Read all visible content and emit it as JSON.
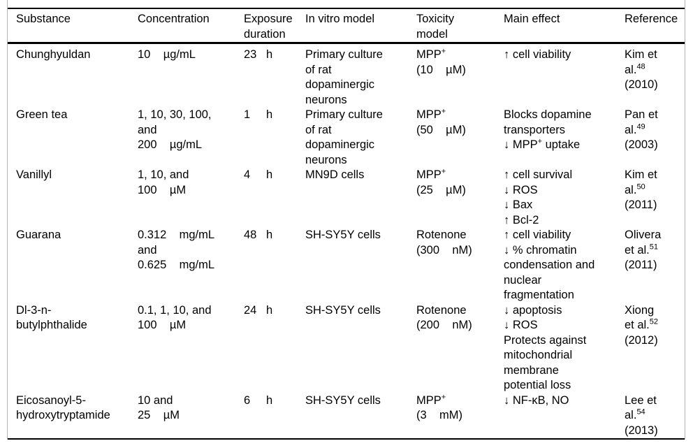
{
  "colors": {
    "text": "#000000",
    "rule": "#000000",
    "frame_border": "#b3b3b3",
    "background": "#ffffff"
  },
  "table": {
    "columns": [
      "Substance",
      "Concentration",
      "Exposure\nduration",
      "In vitro model",
      "Toxicity\nmodel",
      "Main effect",
      "Reference"
    ],
    "rows": [
      {
        "substance": "Chunghyuldan",
        "concentration": "10    µg/mL",
        "duration_value": "23",
        "duration_unit": "h",
        "in_vitro_model": "Primary culture\nof rat\ndopaminergic\nneurons",
        "toxicity_model": "MPP^{+}\n(10    µM)",
        "main_effect": "↑ cell viability",
        "reference": "Kim et\nal.^{48}\n(2010)"
      },
      {
        "substance": "Green tea",
        "concentration": "1, 10, 30, 100,\nand\n200    µg/mL",
        "duration_value": "1",
        "duration_unit": "h",
        "in_vitro_model": "Primary culture\nof rat\ndopaminergic\nneurons",
        "toxicity_model": "MPP^{+}\n(50    µM)",
        "main_effect": "Blocks dopamine\ntransporters\n↓ MPP^{+} uptake",
        "reference": "Pan et\nal.^{49}\n(2003)"
      },
      {
        "substance": "Vanillyl",
        "concentration": "1, 10, and\n100    µM",
        "duration_value": "4",
        "duration_unit": "h",
        "in_vitro_model": "MN9D cells",
        "toxicity_model": "MPP^{+}\n(25    µM)",
        "main_effect": "↑ cell survival\n↓ ROS\n↓ Bax\n↑ Bcl-2",
        "reference": "Kim et\nal.^{50}\n(2011)"
      },
      {
        "substance": "Guarana",
        "concentration": "0.312    mg/mL\nand\n0.625    mg/mL",
        "duration_value": "48",
        "duration_unit": "h",
        "in_vitro_model": "SH-SY5Y cells",
        "toxicity_model": "Rotenone\n(300    nM)",
        "main_effect": "↑ cell viability\n↓ % chromatin\ncondensation and\nnuclear\nfragmentation",
        "reference": "Olivera\net al.^{51}\n(2011)"
      },
      {
        "substance": "Dl-3-n-\nbutylphthalide",
        "concentration": "0.1, 1, 10, and\n100    µM",
        "duration_value": "24",
        "duration_unit": "h",
        "in_vitro_model": "SH-SY5Y cells",
        "toxicity_model": "Rotenone\n(200    nM)",
        "main_effect": "↓ apoptosis\n↓ ROS\nProtects against\nmitochondrial\nmembrane\npotential loss",
        "reference": "Xiong\net al.^{52}\n(2012)"
      },
      {
        "substance": "Eicosanoyl-5-\nhydroxytryptamide",
        "concentration": "10 and\n25    µM",
        "duration_value": "6",
        "duration_unit": "h",
        "in_vitro_model": "SH-SY5Y cells",
        "toxicity_model": "MPP^{+}\n(3    mM)",
        "main_effect": "↓ NF-κB, NO",
        "reference": "Lee et\nal.^{54}\n(2013)"
      }
    ]
  }
}
